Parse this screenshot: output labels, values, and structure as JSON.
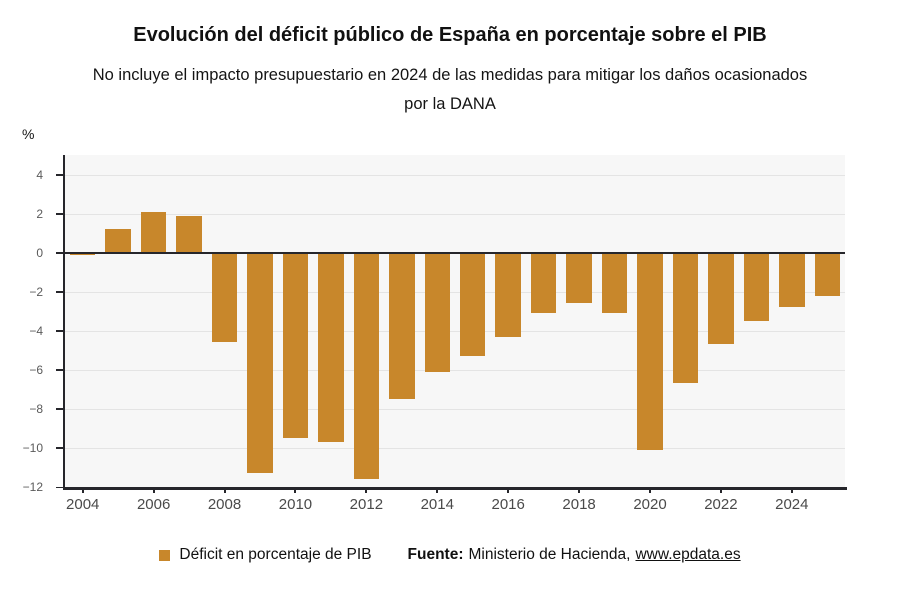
{
  "header": {
    "title": "Evolución del déficit público de España en porcentaje sobre el PIB",
    "subtitle_line1": "No incluye el impacto presupuestario en 2024 de las medidas para mitigar los daños ocasionados",
    "subtitle_line2": "por la DANA"
  },
  "chart": {
    "unit_label": "%",
    "ymax": 5,
    "ymin": -12,
    "y_ticks": [
      4,
      2,
      0,
      -2,
      -4,
      -6,
      -8,
      -10,
      -12
    ],
    "y_tick_labels": [
      "4",
      "2",
      "0",
      "−2",
      "−4",
      "−6",
      "−8",
      "−10",
      "−12"
    ],
    "x_ticks": [
      2004,
      2006,
      2008,
      2010,
      2012,
      2014,
      2016,
      2018,
      2020,
      2022,
      2024
    ],
    "plot_background": "#f7f7f7",
    "gridline_color": "#e4e4e4",
    "axis_color": "#26262b"
  },
  "chart_data": {
    "type": "bar",
    "title": "Evolución del déficit público de España en porcentaje sobre el PIB",
    "xlabel": "",
    "ylabel": "%",
    "ylim": [
      -12,
      5
    ],
    "grid": true,
    "legend_position": "bottom",
    "bar_color": "#C8872B",
    "categories": [
      2004,
      2005,
      2006,
      2007,
      2008,
      2009,
      2010,
      2011,
      2012,
      2013,
      2014,
      2015,
      2016,
      2017,
      2018,
      2019,
      2020,
      2021,
      2022,
      2023,
      2024,
      2025
    ],
    "series": [
      {
        "name": "Déficit en porcentaje de PIB",
        "values": [
          -0.1,
          1.2,
          2.1,
          1.9,
          -4.6,
          -11.3,
          -9.5,
          -9.7,
          -11.6,
          -7.5,
          -6.1,
          -5.3,
          -4.3,
          -3.1,
          -2.6,
          -3.1,
          -10.1,
          -6.7,
          -4.7,
          -3.5,
          -2.8,
          -2.2
        ]
      }
    ]
  },
  "legend": {
    "label": "Déficit en porcentaje de PIB",
    "swatch_color": "#C8872B"
  },
  "source": {
    "prefix": "Fuente:",
    "text": "Ministerio de Hacienda,",
    "link": "www.epdata.es"
  }
}
